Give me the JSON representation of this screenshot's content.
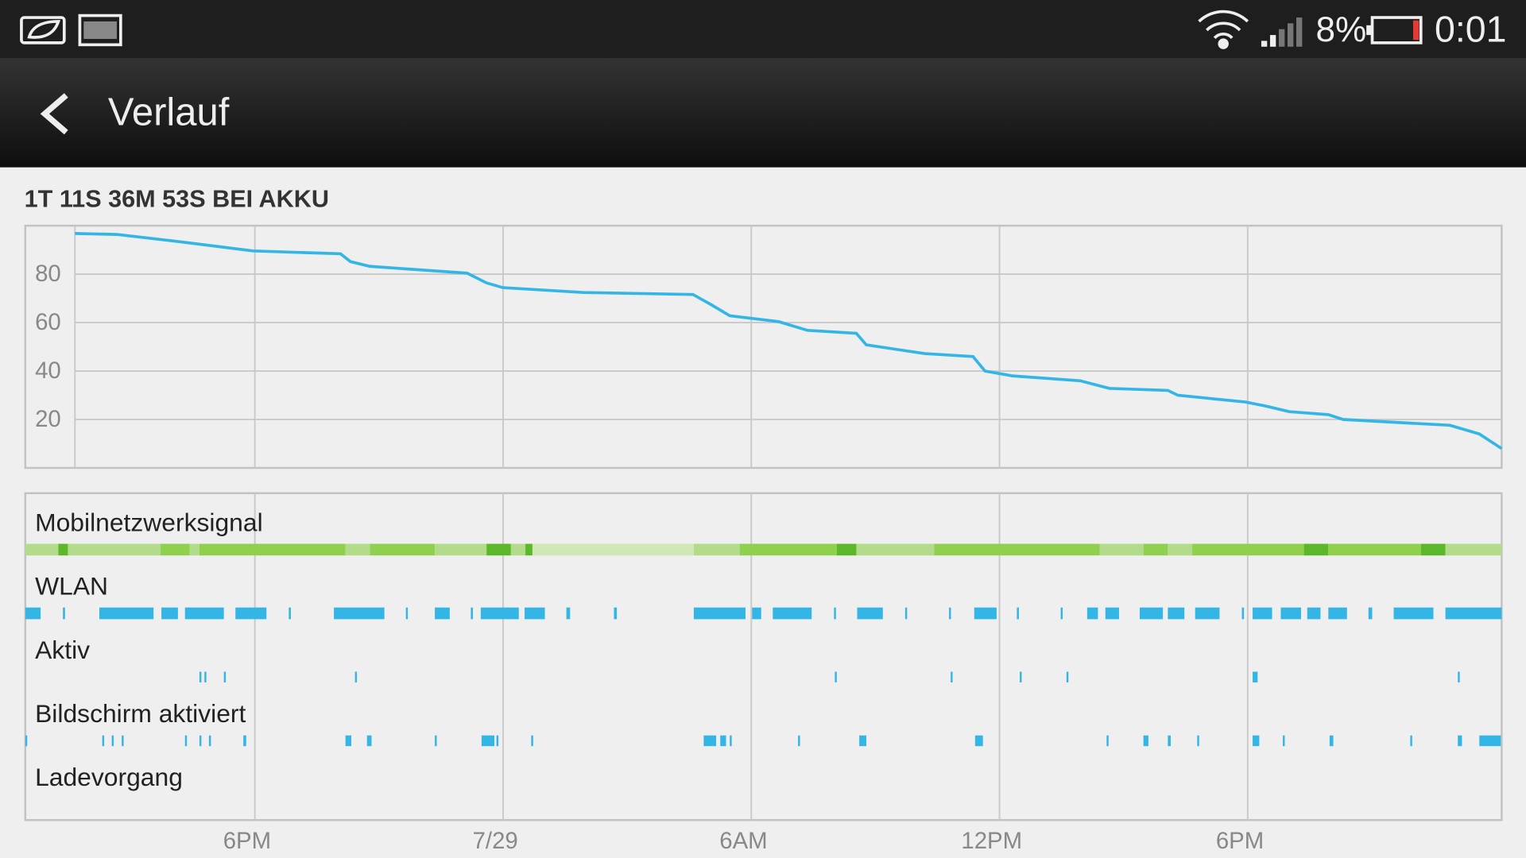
{
  "status_bar": {
    "battery_text": "8%",
    "time": "0:01"
  },
  "header": {
    "title": "Verlauf"
  },
  "chart_data": {
    "type": "line",
    "title": "1T 11S 36M 53S BEI AKKU",
    "x": [
      13.65,
      14.66,
      16.07,
      17.95,
      20.07,
      20.31,
      20.78,
      23.13,
      23.6,
      24,
      25.95,
      28.59,
      29.01,
      29.48,
      30.66,
      31.36,
      32.54,
      32.78,
      34.19,
      35.36,
      35.65,
      36.31,
      37.95,
      38.66,
      40.07,
      40.31,
      41.95,
      42.42,
      43.01,
      43.95,
      44.31,
      46.89,
      47.6,
      48.14
    ],
    "values": [
      96.8,
      96.4,
      93.6,
      89.6,
      88.4,
      85.2,
      83.2,
      80.4,
      76.4,
      74.4,
      72.4,
      71.6,
      67.6,
      62.8,
      60.4,
      56.8,
      55.6,
      50.8,
      47.2,
      46,
      40,
      38,
      36,
      32.8,
      32,
      30,
      27.2,
      25.6,
      23.2,
      22,
      20,
      17.6,
      14,
      8
    ],
    "color": "#33b5e5",
    "xlim": [
      12.45,
      48.14
    ],
    "ylim": [
      0,
      100
    ],
    "yticks": [
      20,
      40,
      60,
      80
    ],
    "xticks": [
      {
        "value": 18,
        "label": "6PM"
      },
      {
        "value": 24,
        "label": "7/29"
      },
      {
        "value": 30,
        "label": "6AM"
      },
      {
        "value": 36,
        "label": "12PM"
      },
      {
        "value": 42,
        "label": "6PM"
      }
    ],
    "grid": true
  },
  "activity": {
    "level_colors": [
      "#cfe8b4",
      "#b3dc8a",
      "#8fd14f",
      "#5cb82a"
    ],
    "rows": [
      {
        "label": "Mobilnetzwerksignal",
        "segments": [
          [
            12.45,
            13.25,
            1
          ],
          [
            13.25,
            13.48,
            3
          ],
          [
            13.48,
            15.72,
            1
          ],
          [
            15.72,
            16.42,
            2
          ],
          [
            16.42,
            16.66,
            1
          ],
          [
            16.66,
            20.19,
            2
          ],
          [
            20.19,
            20.78,
            1
          ],
          [
            20.78,
            22.35,
            2
          ],
          [
            22.35,
            23.6,
            1
          ],
          [
            23.6,
            24.19,
            3
          ],
          [
            24.19,
            24.54,
            1
          ],
          [
            24.54,
            24.71,
            3
          ],
          [
            24.71,
            28.61,
            0
          ],
          [
            28.61,
            29.72,
            1
          ],
          [
            29.72,
            32.07,
            2
          ],
          [
            32.07,
            32.54,
            3
          ],
          [
            32.54,
            34.42,
            1
          ],
          [
            34.42,
            38.42,
            2
          ],
          [
            38.42,
            39.48,
            1
          ],
          [
            39.48,
            40.07,
            2
          ],
          [
            40.07,
            40.66,
            1
          ],
          [
            40.66,
            43.36,
            2
          ],
          [
            43.36,
            43.95,
            3
          ],
          [
            43.95,
            46.19,
            2
          ],
          [
            46.19,
            46.78,
            3
          ],
          [
            46.78,
            48.14,
            1
          ]
        ]
      },
      {
        "label": "WLAN",
        "color": "#33b5e5",
        "segments": [
          [
            12.45,
            12.82
          ],
          [
            13.36,
            13.41
          ],
          [
            14.24,
            15.55
          ],
          [
            15.74,
            16.14
          ],
          [
            16.31,
            17.25
          ],
          [
            17.53,
            18.28
          ],
          [
            18.82,
            18.87
          ],
          [
            19.91,
            21.13
          ],
          [
            21.65,
            21.69
          ],
          [
            22.35,
            22.71
          ],
          [
            23.22,
            23.27
          ],
          [
            23.46,
            24.38
          ],
          [
            24.52,
            25.01
          ],
          [
            25.53,
            25.62
          ],
          [
            26.68,
            26.75
          ],
          [
            28.61,
            29.86
          ],
          [
            30.02,
            30.24
          ],
          [
            30.52,
            31.46
          ],
          [
            32.0,
            32.02
          ],
          [
            32.56,
            33.18
          ],
          [
            33.72,
            33.74
          ],
          [
            34.78,
            34.8
          ],
          [
            35.39,
            35.93
          ],
          [
            36.42,
            36.47
          ],
          [
            37.48,
            37.51
          ],
          [
            38.12,
            38.38
          ],
          [
            38.56,
            38.89
          ],
          [
            39.39,
            39.95
          ],
          [
            40.07,
            40.47
          ],
          [
            40.73,
            41.32
          ],
          [
            41.86,
            41.91
          ],
          [
            42.12,
            42.59
          ],
          [
            42.8,
            43.29
          ],
          [
            43.44,
            43.76
          ],
          [
            43.95,
            44.4
          ],
          [
            44.92,
            45.01
          ],
          [
            45.53,
            46.49
          ],
          [
            46.78,
            48.14
          ]
        ]
      },
      {
        "label": "Aktiv",
        "color": "#33b5e5",
        "segments": [
          [
            16.66,
            16.7
          ],
          [
            16.78,
            16.82
          ],
          [
            17.25,
            17.29
          ],
          [
            20.42,
            20.46
          ],
          [
            32.02,
            32.06
          ],
          [
            34.82,
            34.86
          ],
          [
            36.49,
            36.53
          ],
          [
            37.62,
            37.66
          ],
          [
            42.12,
            42.24
          ],
          [
            47.08,
            47.12
          ]
        ]
      },
      {
        "label": "Bildschirm aktiviert",
        "color": "#33b5e5",
        "segments": [
          [
            12.45,
            12.49
          ],
          [
            14.31,
            14.35
          ],
          [
            14.54,
            14.58
          ],
          [
            14.78,
            14.82
          ],
          [
            16.31,
            16.35
          ],
          [
            16.66,
            16.7
          ],
          [
            16.89,
            16.93
          ],
          [
            17.72,
            17.79
          ],
          [
            20.19,
            20.33
          ],
          [
            20.71,
            20.82
          ],
          [
            22.35,
            22.39
          ],
          [
            23.48,
            23.79
          ],
          [
            23.84,
            23.88
          ],
          [
            24.68,
            24.72
          ],
          [
            28.85,
            29.15
          ],
          [
            29.25,
            29.39
          ],
          [
            29.48,
            29.52
          ],
          [
            31.13,
            31.17
          ],
          [
            32.61,
            32.78
          ],
          [
            35.41,
            35.6
          ],
          [
            38.59,
            38.63
          ],
          [
            39.48,
            39.6
          ],
          [
            40.07,
            40.14
          ],
          [
            40.78,
            40.82
          ],
          [
            42.12,
            42.28
          ],
          [
            42.85,
            42.89
          ],
          [
            43.98,
            44.07
          ],
          [
            45.93,
            45.97
          ],
          [
            47.08,
            47.18
          ],
          [
            47.6,
            48.12
          ]
        ]
      },
      {
        "label": "Ladevorgang",
        "color": "#33b5e5",
        "segments": []
      }
    ]
  }
}
